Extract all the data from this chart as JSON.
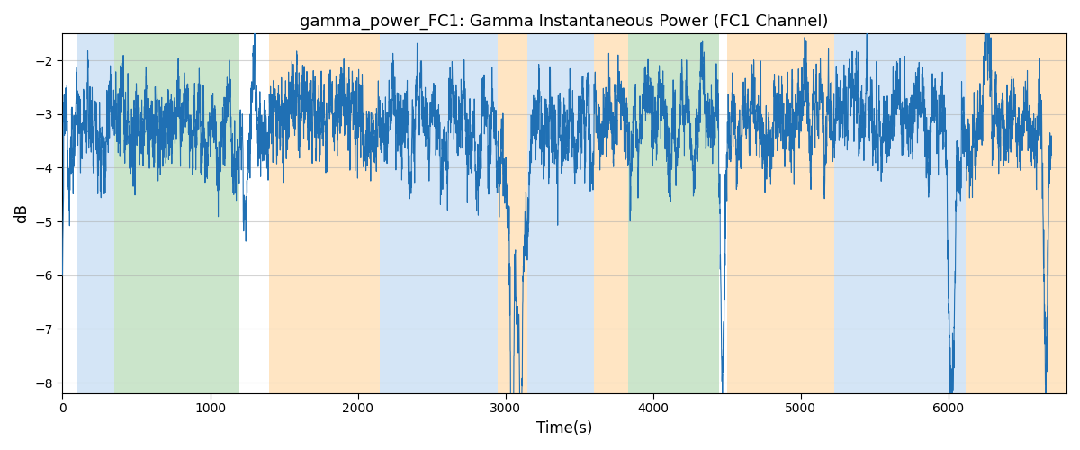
{
  "title": "gamma_power_FC1: Gamma Instantaneous Power (FC1 Channel)",
  "xlabel": "Time(s)",
  "ylabel": "dB",
  "xlim": [
    0,
    6800
  ],
  "ylim": [
    -8.2,
    -1.5
  ],
  "yticks": [
    -8,
    -7,
    -6,
    -5,
    -4,
    -3,
    -2
  ],
  "line_color": "#2070b4",
  "line_width": 0.8,
  "grid_color": "#aaaaaa",
  "grid_alpha": 0.5,
  "regions": [
    {
      "start": 100,
      "end": 350,
      "color": "#aaccee",
      "alpha": 0.5
    },
    {
      "start": 350,
      "end": 1200,
      "color": "#99cc99",
      "alpha": 0.5
    },
    {
      "start": 1400,
      "end": 2150,
      "color": "#ffcc88",
      "alpha": 0.5
    },
    {
      "start": 2150,
      "end": 2950,
      "color": "#aaccee",
      "alpha": 0.5
    },
    {
      "start": 2950,
      "end": 3150,
      "color": "#ffcc88",
      "alpha": 0.5
    },
    {
      "start": 3150,
      "end": 3600,
      "color": "#aaccee",
      "alpha": 0.5
    },
    {
      "start": 3600,
      "end": 3830,
      "color": "#ffcc88",
      "alpha": 0.5
    },
    {
      "start": 3830,
      "end": 4450,
      "color": "#99cc99",
      "alpha": 0.5
    },
    {
      "start": 4500,
      "end": 5230,
      "color": "#ffcc88",
      "alpha": 0.5
    },
    {
      "start": 5230,
      "end": 6120,
      "color": "#aaccee",
      "alpha": 0.5
    },
    {
      "start": 6120,
      "end": 6800,
      "color": "#ffcc88",
      "alpha": 0.5
    }
  ]
}
